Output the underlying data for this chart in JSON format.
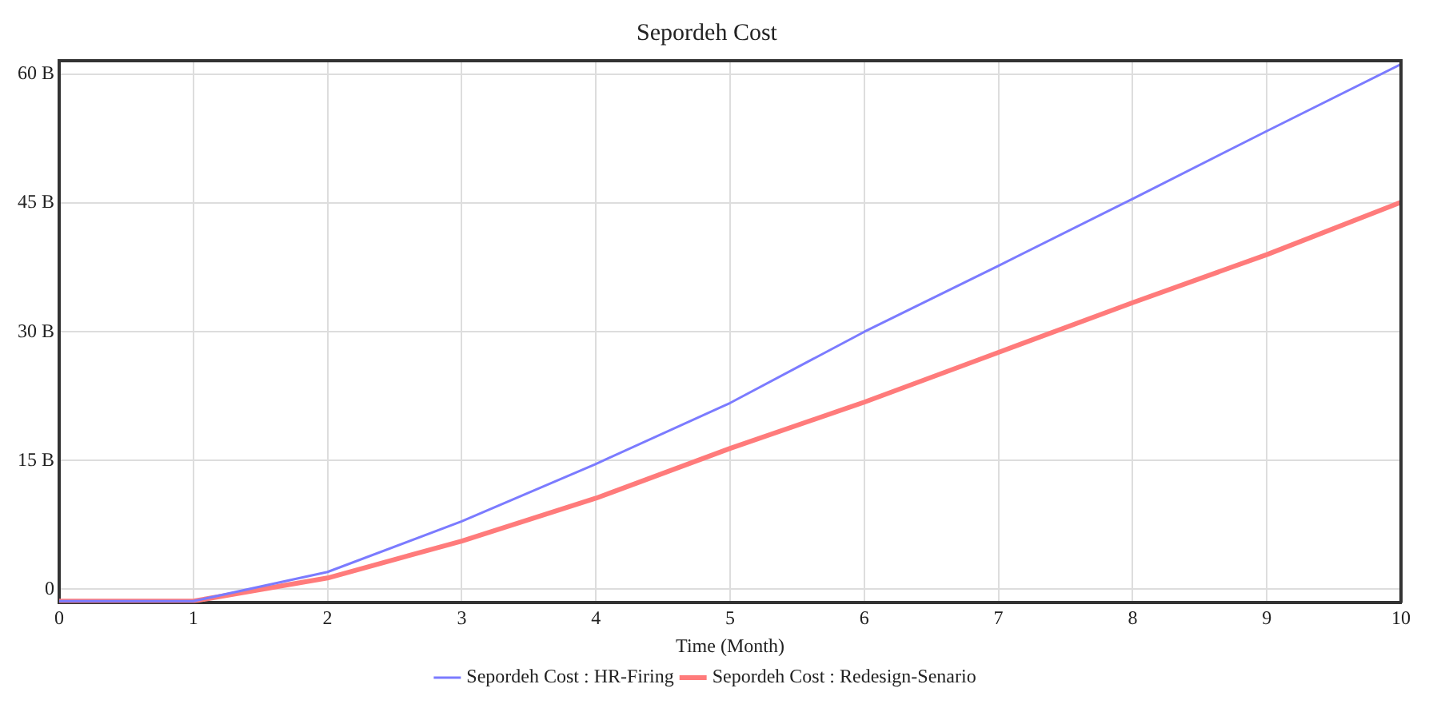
{
  "chart_data": {
    "type": "line",
    "title": "Sepordeh Cost",
    "xlabel": "Time (Month)",
    "x": [
      0,
      1,
      2,
      3,
      4,
      5,
      6,
      7,
      8,
      9,
      10
    ],
    "xlim": [
      0,
      10
    ],
    "xticks": [
      0,
      1,
      2,
      3,
      4,
      5,
      6,
      7,
      8,
      9,
      10
    ],
    "ylim": [
      -1.6,
      61.6
    ],
    "yticks": [
      {
        "value": 0,
        "label": "0"
      },
      {
        "value": 15,
        "label": "15 B"
      },
      {
        "value": 30,
        "label": "30 B"
      },
      {
        "value": 45,
        "label": "45 B"
      },
      {
        "value": 60,
        "label": "60 B"
      }
    ],
    "series": [
      {
        "name": "Sepordeh Cost : HR-Firing",
        "color": "#7b7bff",
        "values": [
          -1.4,
          -1.4,
          2.0,
          7.9,
          14.6,
          21.7,
          30.0,
          37.7,
          45.5,
          53.4,
          61.2
        ]
      },
      {
        "name": "Sepordeh Cost : Redesign-Senario",
        "color": "#ff7b7b",
        "values": [
          -1.4,
          -1.4,
          1.3,
          5.6,
          10.6,
          16.4,
          21.8,
          27.6,
          33.4,
          39.0,
          45.1
        ]
      }
    ],
    "grid": true,
    "legend": "bottom",
    "marker": "none",
    "line_style": "solid"
  }
}
